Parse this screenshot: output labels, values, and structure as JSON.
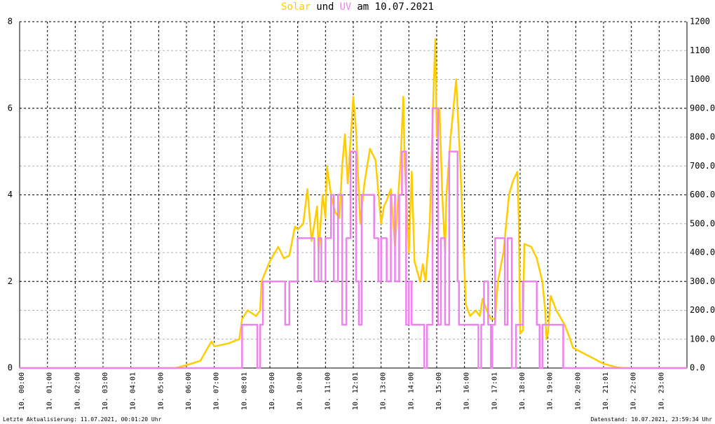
{
  "chart_data": {
    "type": "line",
    "title_join": "und",
    "title_date": "am 10.07.2021",
    "footer_left": "Letzte Aktualisierung: 11.07.2021, 00:01:20 Uhr",
    "footer_right": "Datenstand: 10.07.2021, 23:59:34 Uhr",
    "xlim": [
      0,
      24
    ],
    "xticks": [
      {
        "value": 0,
        "label": "10. 00:00"
      },
      {
        "value": 1,
        "label": "10. 01:00"
      },
      {
        "value": 2,
        "label": "10. 02:00"
      },
      {
        "value": 3,
        "label": "10. 03:00"
      },
      {
        "value": 4,
        "label": "10. 04:01"
      },
      {
        "value": 5,
        "label": "10. 05:00"
      },
      {
        "value": 6,
        "label": "10. 06:00"
      },
      {
        "value": 7,
        "label": "10. 07:00"
      },
      {
        "value": 8,
        "label": "10. 08:01"
      },
      {
        "value": 9,
        "label": "10. 09:00"
      },
      {
        "value": 10,
        "label": "10. 10:00"
      },
      {
        "value": 11,
        "label": "10. 11:00"
      },
      {
        "value": 12,
        "label": "10. 12:01"
      },
      {
        "value": 13,
        "label": "10. 13:00"
      },
      {
        "value": 14,
        "label": "10. 14:00"
      },
      {
        "value": 15,
        "label": "10. 15:00"
      },
      {
        "value": 16,
        "label": "10. 16:00"
      },
      {
        "value": 17,
        "label": "10. 17:01"
      },
      {
        "value": 18,
        "label": "10. 18:00"
      },
      {
        "value": 19,
        "label": "10. 19:00"
      },
      {
        "value": 20,
        "label": "10. 20:00"
      },
      {
        "value": 21,
        "label": "10. 21:01"
      },
      {
        "value": 22,
        "label": "10. 22:00"
      },
      {
        "value": 23,
        "label": "10. 23:00"
      }
    ],
    "ylim": [
      0,
      8
    ],
    "yticks": [
      0,
      2,
      4,
      6,
      8
    ],
    "y2lim": [
      0,
      1200
    ],
    "y2ticks": [
      {
        "value": 0,
        "label": "0.0"
      },
      {
        "value": 100,
        "label": "100.0"
      },
      {
        "value": 200,
        "label": "200.0"
      },
      {
        "value": 300,
        "label": "300.0"
      },
      {
        "value": 400,
        "label": "400.0"
      },
      {
        "value": 500,
        "label": "500.0"
      },
      {
        "value": 600,
        "label": "600.0"
      },
      {
        "value": 700,
        "label": "700.0"
      },
      {
        "value": 800,
        "label": "800.0"
      },
      {
        "value": 900,
        "label": "900.0"
      },
      {
        "value": 1000,
        "label": "1000"
      },
      {
        "value": 1100,
        "label": "1100"
      },
      {
        "value": 1200,
        "label": "1200"
      }
    ],
    "grid": true,
    "series": [
      {
        "name": "Solar",
        "color": "#ffcc00",
        "axis": "y2",
        "x": [
          0,
          5.6,
          6.0,
          6.5,
          6.9,
          7.0,
          7.5,
          7.9,
          8.0,
          8.2,
          8.5,
          8.65,
          8.7,
          9.0,
          9.3,
          9.5,
          9.7,
          9.9,
          10.0,
          10.2,
          10.35,
          10.5,
          10.7,
          10.75,
          10.9,
          11.0,
          11.05,
          11.2,
          11.35,
          11.5,
          11.6,
          11.7,
          11.8,
          11.95,
          12.0,
          12.1,
          12.25,
          12.4,
          12.5,
          12.6,
          12.8,
          13.0,
          13.1,
          13.2,
          13.35,
          13.5,
          13.7,
          13.8,
          13.85,
          14.0,
          14.1,
          14.2,
          14.4,
          14.5,
          14.6,
          14.75,
          14.85,
          14.9,
          14.95,
          15.0,
          15.1,
          15.2,
          15.3,
          15.35,
          15.5,
          15.6,
          15.7,
          15.75,
          15.85,
          15.95,
          16.05,
          16.2,
          16.4,
          16.55,
          16.65,
          16.8,
          16.95,
          17.1,
          17.2,
          17.4,
          17.5,
          17.6,
          17.75,
          17.9,
          17.95,
          18.0,
          18.1,
          18.15,
          18.4,
          18.6,
          18.8,
          18.9,
          18.95,
          19.0,
          19.1,
          19.3,
          19.6,
          19.8,
          19.9,
          20.1,
          20.5,
          21.0,
          21.5,
          21.7,
          24
        ],
        "values": [
          0,
          0,
          10,
          25,
          92,
          75,
          85,
          100,
          170,
          200,
          180,
          200,
          300,
          370,
          420,
          380,
          390,
          490,
          480,
          500,
          620,
          440,
          560,
          400,
          600,
          520,
          700,
          600,
          540,
          520,
          700,
          810,
          640,
          860,
          940,
          820,
          500,
          640,
          700,
          760,
          720,
          500,
          560,
          580,
          620,
          420,
          720,
          940,
          700,
          400,
          680,
          370,
          300,
          360,
          300,
          500,
          850,
          1000,
          1140,
          800,
          900,
          600,
          400,
          600,
          800,
          900,
          1000,
          900,
          700,
          450,
          220,
          180,
          200,
          180,
          240,
          200,
          170,
          170,
          300,
          400,
          500,
          600,
          650,
          680,
          520,
          120,
          130,
          430,
          420,
          380,
          300,
          200,
          100,
          120,
          250,
          200,
          150,
          100,
          70,
          60,
          40,
          15,
          2,
          0,
          0
        ]
      },
      {
        "name": "UV",
        "color": "#ee82ee",
        "x": [
          0,
          8,
          8,
          8.55,
          8.55,
          8.65,
          8.65,
          8.75,
          8.75,
          9.55,
          9.55,
          9.7,
          9.7,
          10,
          10,
          10.6,
          10.6,
          10.75,
          10.75,
          10.85,
          10.85,
          11,
          11,
          11.2,
          11.2,
          11.3,
          11.3,
          11.45,
          11.45,
          11.6,
          11.6,
          11.75,
          11.75,
          11.9,
          11.9,
          12.1,
          12.1,
          12.2,
          12.2,
          12.3,
          12.3,
          12.75,
          12.75,
          12.9,
          12.9,
          13,
          13,
          13.2,
          13.2,
          13.35,
          13.35,
          13.5,
          13.5,
          13.65,
          13.65,
          13.75,
          13.75,
          13.9,
          13.9,
          14,
          14,
          14.1,
          14.1,
          14.55,
          14.55,
          14.65,
          14.65,
          14.85,
          14.85,
          15.05,
          15.05,
          15.15,
          15.15,
          15.3,
          15.3,
          15.45,
          15.45,
          15.75,
          15.75,
          15.8,
          15.8,
          16.5,
          16.5,
          16.6,
          16.6,
          16.7,
          16.7,
          16.85,
          16.85,
          16.95,
          16.95,
          17,
          17,
          17.1,
          17.1,
          17.45,
          17.45,
          17.55,
          17.55,
          17.7,
          17.7,
          17.85,
          17.85,
          18.1,
          18.1,
          18.6,
          18.6,
          18.7,
          18.7,
          18.8,
          18.8,
          19.55,
          19.55,
          24
        ],
        "values": [
          0,
          0,
          1,
          1,
          0,
          0,
          1,
          1,
          2,
          2,
          1,
          1,
          2,
          2,
          3,
          3,
          2,
          2,
          3,
          3,
          2,
          2,
          3,
          3,
          4,
          4,
          2,
          2,
          4,
          4,
          1,
          1,
          3,
          3,
          5,
          5,
          2,
          2,
          1,
          1,
          4,
          4,
          3,
          3,
          2,
          2,
          3,
          3,
          2,
          2,
          4,
          4,
          2,
          2,
          4,
          4,
          5,
          5,
          1,
          1,
          2,
          2,
          1,
          1,
          0,
          0,
          1,
          1,
          6,
          6,
          1,
          1,
          3,
          3,
          1,
          1,
          5,
          5,
          2,
          2,
          1,
          1,
          0,
          0,
          1,
          1,
          2,
          2,
          1,
          1,
          0,
          0,
          1,
          1,
          3,
          3,
          1,
          1,
          3,
          3,
          0,
          0,
          1,
          1,
          2,
          2,
          1,
          1,
          0,
          0,
          1,
          1,
          0,
          0
        ]
      }
    ]
  }
}
